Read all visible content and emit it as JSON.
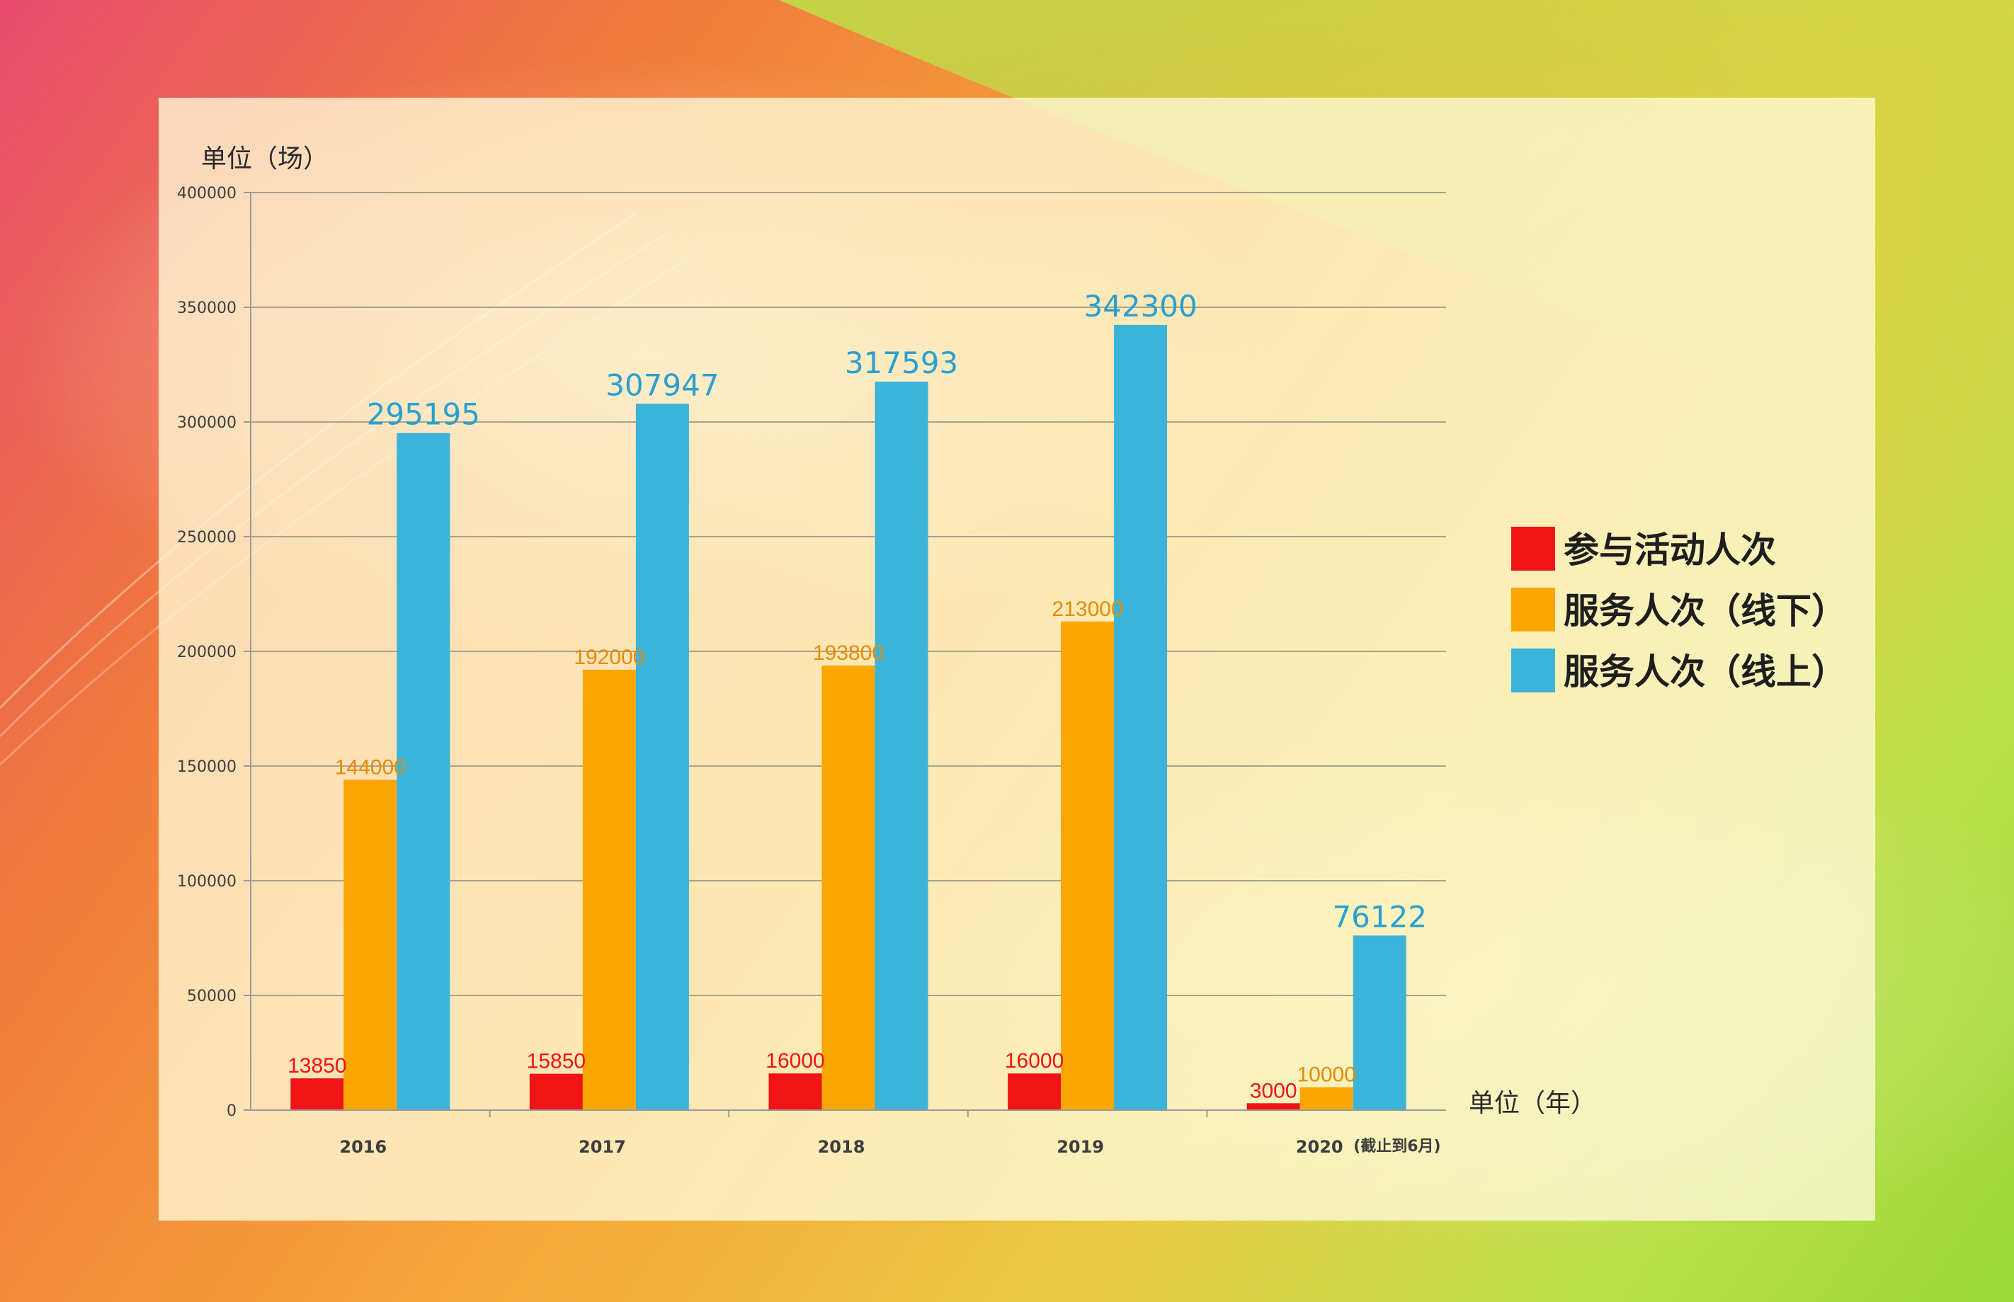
{
  "colors": {
    "participation": "#f01414",
    "offline": "#faa706",
    "online": "#3cb3d9",
    "grid": "#a7a48a",
    "axis": "#9a9a9a"
  },
  "chart_data": {
    "type": "bar",
    "categories": [
      "2016",
      "2017",
      "2018",
      "2019",
      "2020"
    ],
    "category_notes": [
      "",
      "",
      "",
      "",
      "(截止到6月)"
    ],
    "series": [
      {
        "name": "参与活动人次",
        "color": "#f01414",
        "values": [
          13850,
          15850,
          16000,
          16000,
          3000
        ]
      },
      {
        "name": "服务人次（线下）",
        "color": "#faa706",
        "values": [
          144000,
          192000,
          193800,
          213000,
          10000
        ]
      },
      {
        "name": "服务人次（线上）",
        "color": "#3cb3d9",
        "values": [
          295195,
          307947,
          317593,
          342300,
          76122
        ]
      }
    ],
    "y_ticks": [
      0,
      50000,
      100000,
      150000,
      200000,
      250000,
      300000,
      350000,
      400000
    ],
    "ylim": [
      0,
      400000
    ],
    "ylabel": "单位（场）",
    "xlabel": "单位（年）",
    "grid": true,
    "legend_position": "right"
  }
}
